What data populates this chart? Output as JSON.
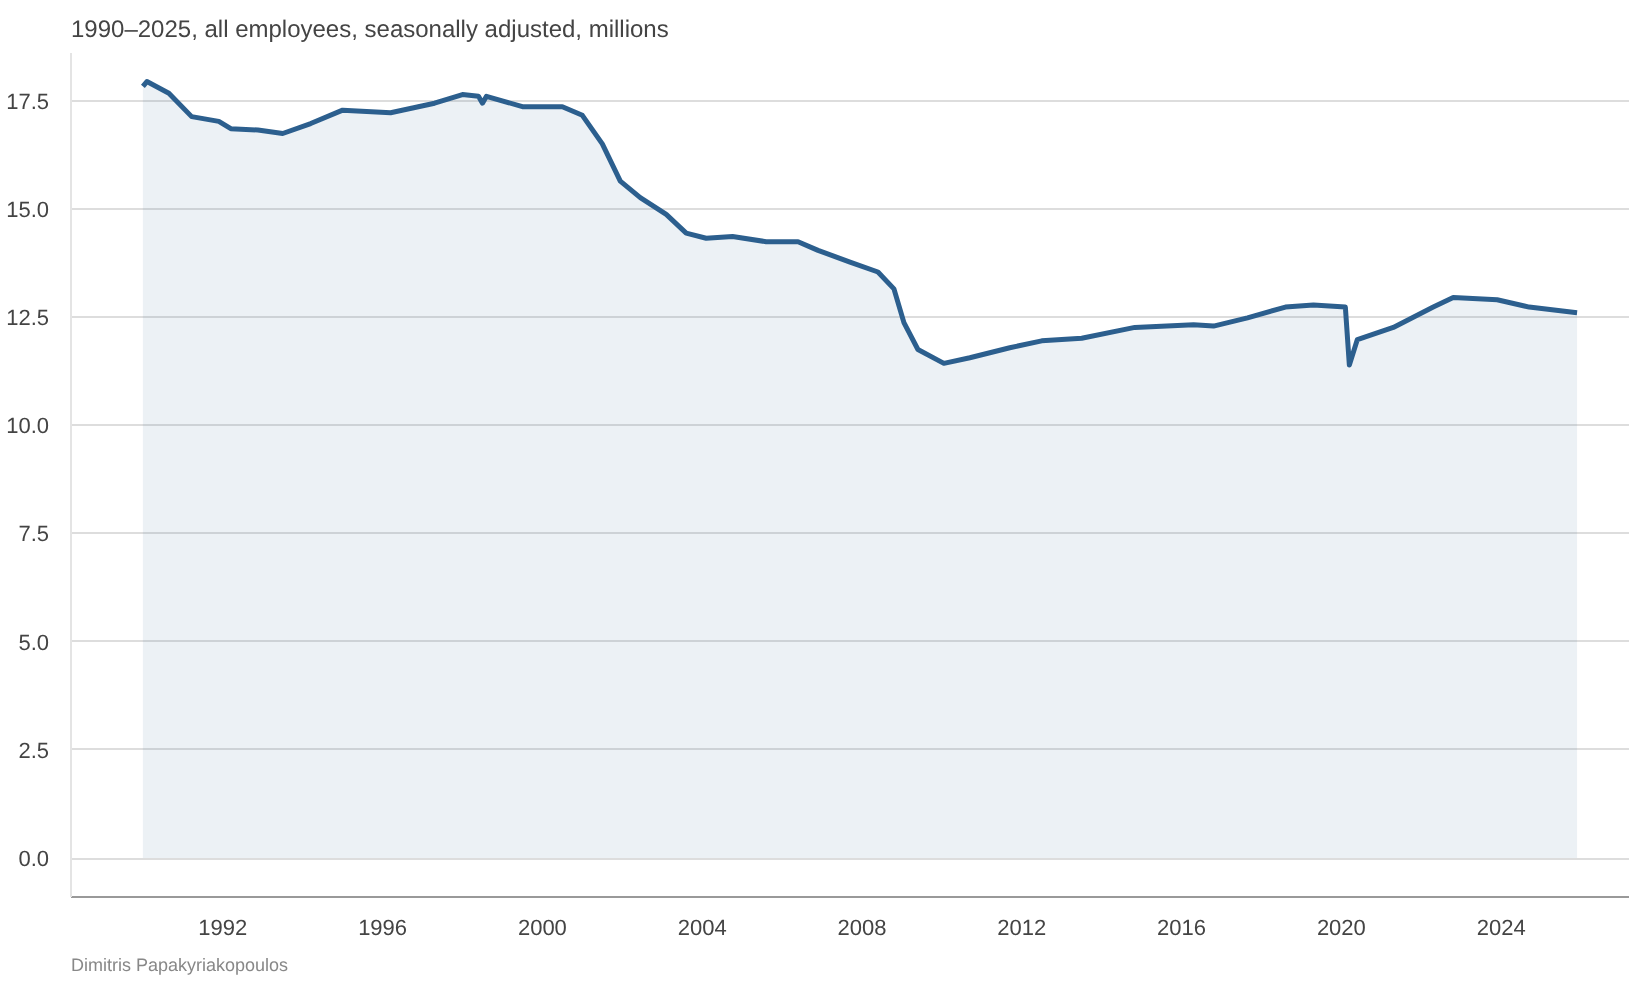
{
  "chart_data": {
    "type": "area",
    "title": "1990–2025, all employees, seasonally adjusted, millions",
    "annotations": [
      "Dimitris Papakyriakopoulos"
    ],
    "x": [
      1990.0,
      1990.1,
      1990.65,
      1991.22,
      1991.9,
      1992.2,
      1992.88,
      1993.5,
      1994.2,
      1995.0,
      1996.2,
      1997.3,
      1998.0,
      1998.4,
      1998.5,
      1998.6,
      1999.5,
      2000.5,
      2001.0,
      2001.5,
      2001.95,
      2002.45,
      2003.1,
      2003.6,
      2004.1,
      2004.76,
      2005.6,
      2006.4,
      2006.9,
      2007.7,
      2008.4,
      2008.8,
      2009.05,
      2009.4,
      2010.05,
      2010.7,
      2011.7,
      2012.5,
      2013.5,
      2014.83,
      2016.3,
      2016.8,
      2017.65,
      2018.6,
      2019.3,
      2020.1,
      2020.2,
      2020.4,
      2021.3,
      2022.3,
      2022.8,
      2023.9,
      2024.7,
      2025.9
    ],
    "series": [
      {
        "color": "#2c5f8e",
        "values": [
          17.83,
          17.94,
          17.67,
          17.13,
          17.02,
          16.85,
          16.82,
          16.74,
          16.97,
          17.28,
          17.22,
          17.44,
          17.64,
          17.6,
          17.44,
          17.6,
          17.36,
          17.36,
          17.16,
          16.5,
          15.64,
          15.26,
          14.87,
          14.44,
          14.32,
          14.36,
          14.24,
          14.24,
          14.04,
          13.77,
          13.54,
          13.15,
          12.37,
          11.75,
          11.43,
          11.56,
          11.79,
          11.95,
          12.01,
          12.26,
          12.32,
          12.29,
          12.48,
          12.73,
          12.78,
          12.73,
          11.39,
          11.98,
          12.26,
          12.73,
          12.95,
          12.9,
          12.73,
          12.6
        ]
      }
    ],
    "xlim": [
      1988.2,
      2027.2
    ],
    "ylim": [
      -0.9,
      18.6
    ],
    "xticks": [
      1992,
      1996,
      2000,
      2004,
      2008,
      2012,
      2016,
      2020,
      2024
    ],
    "yticks": [
      {
        "value": 0,
        "label": "0.0"
      },
      {
        "value": 2.5,
        "label": "2.5"
      },
      {
        "value": 5,
        "label": "5.0"
      },
      {
        "value": 7.5,
        "label": "7.5"
      },
      {
        "value": 10,
        "label": "10.0"
      },
      {
        "value": 12.5,
        "label": "12.5"
      },
      {
        "value": 15,
        "label": "15.0"
      },
      {
        "value": 17.5,
        "label": "17.5"
      }
    ],
    "grid": "y"
  }
}
